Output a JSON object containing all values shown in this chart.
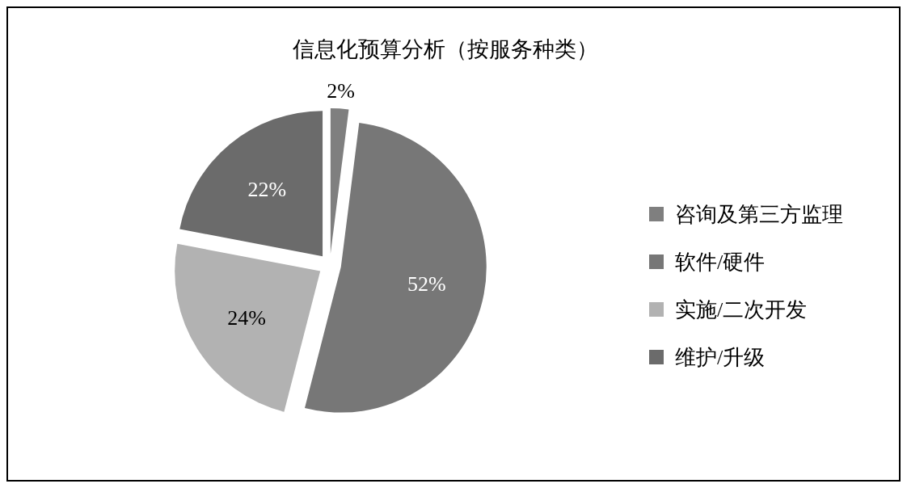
{
  "chart_data": {
    "type": "pie",
    "title": "信息化预算分析（按服务种类）",
    "categories": [
      "咨询及第三方监理",
      "软件/硬件",
      "实施/二次开发",
      "维护/升级"
    ],
    "values": [
      2,
      52,
      24,
      22
    ],
    "value_labels": [
      "2%",
      "52%",
      "24%",
      "22%"
    ],
    "colors": [
      "#7f7f7f",
      "#777777",
      "#b2b2b2",
      "#6b6b6b"
    ],
    "legend": "right"
  }
}
